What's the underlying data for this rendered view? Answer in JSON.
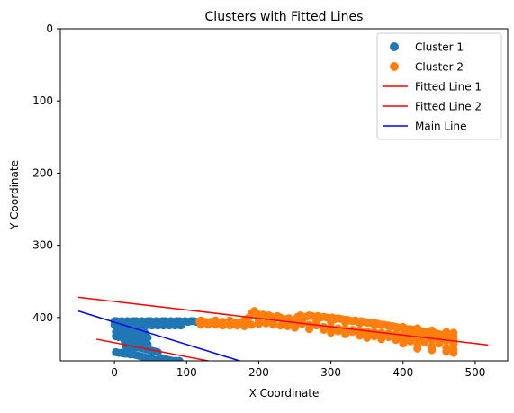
{
  "chart_data": {
    "type": "scatter",
    "title": "Clusters with Fitted Lines",
    "xlabel": "X Coordinate",
    "ylabel": "Y Coordinate",
    "xlim": [
      -75,
      545
    ],
    "ylim": [
      460,
      0
    ],
    "y_inverted": true,
    "grid": false,
    "legend_position": "top-right",
    "xticks": [
      0,
      100,
      200,
      300,
      400,
      500
    ],
    "yticks": [
      0,
      100,
      200,
      300,
      400
    ],
    "series": [
      {
        "name": "Cluster 1",
        "kind": "scatter",
        "color": "#1f77b4",
        "points": [
          [
            0,
            405
          ],
          [
            3,
            405
          ],
          [
            6,
            406
          ],
          [
            10,
            405
          ],
          [
            14,
            406
          ],
          [
            18,
            405
          ],
          [
            22,
            406
          ],
          [
            26,
            405
          ],
          [
            30,
            405
          ],
          [
            34,
            406
          ],
          [
            38,
            405
          ],
          [
            42,
            406
          ],
          [
            46,
            405
          ],
          [
            50,
            405
          ],
          [
            54,
            406
          ],
          [
            58,
            405
          ],
          [
            62,
            406
          ],
          [
            66,
            405
          ],
          [
            70,
            405
          ],
          [
            74,
            406
          ],
          [
            78,
            405
          ],
          [
            82,
            406
          ],
          [
            86,
            405
          ],
          [
            90,
            405
          ],
          [
            94,
            406
          ],
          [
            98,
            405
          ],
          [
            102,
            406
          ],
          [
            106,
            405
          ],
          [
            110,
            405
          ],
          [
            114,
            406
          ],
          [
            0,
            410
          ],
          [
            4,
            411
          ],
          [
            8,
            410
          ],
          [
            12,
            411
          ],
          [
            16,
            410
          ],
          [
            20,
            411
          ],
          [
            24,
            410
          ],
          [
            28,
            411
          ],
          [
            32,
            410
          ],
          [
            36,
            411
          ],
          [
            40,
            410
          ],
          [
            44,
            411
          ],
          [
            48,
            410
          ],
          [
            52,
            411
          ],
          [
            56,
            410
          ],
          [
            60,
            411
          ],
          [
            64,
            410
          ],
          [
            68,
            411
          ],
          [
            72,
            410
          ],
          [
            76,
            411
          ],
          [
            80,
            410
          ],
          [
            84,
            411
          ],
          [
            88,
            410
          ],
          [
            92,
            411
          ],
          [
            2,
            420
          ],
          [
            6,
            421
          ],
          [
            10,
            420
          ],
          [
            14,
            421
          ],
          [
            18,
            420
          ],
          [
            22,
            421
          ],
          [
            26,
            420
          ],
          [
            30,
            421
          ],
          [
            34,
            420
          ],
          [
            38,
            421
          ],
          [
            42,
            421
          ],
          [
            2,
            426
          ],
          [
            6,
            427
          ],
          [
            10,
            426
          ],
          [
            14,
            427
          ],
          [
            18,
            426
          ],
          [
            22,
            427
          ],
          [
            26,
            426
          ],
          [
            30,
            427
          ],
          [
            34,
            426
          ],
          [
            38,
            427
          ],
          [
            42,
            427
          ],
          [
            46,
            428
          ],
          [
            14,
            432
          ],
          [
            18,
            433
          ],
          [
            22,
            432
          ],
          [
            26,
            433
          ],
          [
            30,
            433
          ],
          [
            34,
            434
          ],
          [
            38,
            435
          ],
          [
            42,
            436
          ],
          [
            46,
            437
          ],
          [
            16,
            440
          ],
          [
            20,
            441
          ],
          [
            24,
            440
          ],
          [
            28,
            441
          ],
          [
            32,
            441
          ],
          [
            36,
            442
          ],
          [
            40,
            443
          ],
          [
            44,
            444
          ],
          [
            48,
            445
          ],
          [
            52,
            446
          ],
          [
            56,
            447
          ],
          [
            60,
            448
          ],
          [
            2,
            448
          ],
          [
            6,
            449
          ],
          [
            10,
            449
          ],
          [
            14,
            450
          ],
          [
            18,
            450
          ],
          [
            22,
            451
          ],
          [
            26,
            451
          ],
          [
            30,
            452
          ],
          [
            34,
            453
          ],
          [
            38,
            454
          ],
          [
            42,
            455
          ],
          [
            46,
            456
          ],
          [
            50,
            457
          ],
          [
            54,
            458
          ],
          [
            58,
            459
          ],
          [
            62,
            460
          ],
          [
            64,
            456
          ],
          [
            68,
            457
          ],
          [
            72,
            458
          ],
          [
            76,
            459
          ],
          [
            80,
            460
          ],
          [
            85,
            460
          ],
          [
            90,
            460
          ]
        ]
      },
      {
        "name": "Cluster 2",
        "kind": "scatter",
        "color": "#ff7f0e",
        "points": [
          [
            118,
            406
          ],
          [
            126,
            406
          ],
          [
            134,
            406
          ],
          [
            142,
            406
          ],
          [
            150,
            406
          ],
          [
            158,
            406
          ],
          [
            166,
            407
          ],
          [
            174,
            407
          ],
          [
            182,
            406
          ],
          [
            186,
            400
          ],
          [
            190,
            394
          ],
          [
            194,
            391
          ],
          [
            198,
            395
          ],
          [
            202,
            399
          ],
          [
            206,
            396
          ],
          [
            210,
            398
          ],
          [
            214,
            397
          ],
          [
            218,
            399
          ],
          [
            222,
            401
          ],
          [
            226,
            398
          ],
          [
            230,
            400
          ],
          [
            234,
            404
          ],
          [
            238,
            402
          ],
          [
            242,
            401
          ],
          [
            246,
            404
          ],
          [
            250,
            403
          ],
          [
            254,
            399
          ],
          [
            258,
            397
          ],
          [
            262,
            400
          ],
          [
            266,
            399
          ],
          [
            270,
            397
          ],
          [
            274,
            398
          ],
          [
            278,
            399
          ],
          [
            282,
            398
          ],
          [
            286,
            400
          ],
          [
            290,
            399
          ],
          [
            294,
            400
          ],
          [
            298,
            401
          ],
          [
            302,
            400
          ],
          [
            306,
            402
          ],
          [
            310,
            401
          ],
          [
            314,
            402
          ],
          [
            318,
            403
          ],
          [
            322,
            403
          ],
          [
            326,
            404
          ],
          [
            330,
            405
          ],
          [
            334,
            404
          ],
          [
            338,
            406
          ],
          [
            342,
            405
          ],
          [
            346,
            406
          ],
          [
            350,
            407
          ],
          [
            354,
            407
          ],
          [
            358,
            408
          ],
          [
            362,
            408
          ],
          [
            366,
            409
          ],
          [
            370,
            410
          ],
          [
            374,
            410
          ],
          [
            378,
            411
          ],
          [
            382,
            412
          ],
          [
            386,
            412
          ],
          [
            390,
            413
          ],
          [
            394,
            414
          ],
          [
            398,
            414
          ],
          [
            402,
            415
          ],
          [
            406,
            416
          ],
          [
            410,
            416
          ],
          [
            414,
            417
          ],
          [
            418,
            418
          ],
          [
            422,
            418
          ],
          [
            426,
            419
          ],
          [
            430,
            420
          ],
          [
            434,
            420
          ],
          [
            438,
            421
          ],
          [
            442,
            422
          ],
          [
            446,
            422
          ],
          [
            450,
            423
          ],
          [
            454,
            424
          ],
          [
            458,
            424
          ],
          [
            462,
            425
          ],
          [
            466,
            426
          ],
          [
            470,
            426
          ],
          [
            120,
            410
          ],
          [
            130,
            410
          ],
          [
            140,
            410
          ],
          [
            150,
            411
          ],
          [
            160,
            411
          ],
          [
            170,
            411
          ],
          [
            180,
            412
          ],
          [
            190,
            410
          ],
          [
            200,
            409
          ],
          [
            210,
            408
          ],
          [
            220,
            410
          ],
          [
            230,
            411
          ],
          [
            240,
            412
          ],
          [
            250,
            410
          ],
          [
            260,
            409
          ],
          [
            270,
            410
          ],
          [
            280,
            411
          ],
          [
            290,
            413
          ],
          [
            300,
            414
          ],
          [
            310,
            415
          ],
          [
            320,
            416
          ],
          [
            330,
            417
          ],
          [
            340,
            418
          ],
          [
            350,
            419
          ],
          [
            360,
            420
          ],
          [
            370,
            421
          ],
          [
            380,
            422
          ],
          [
            390,
            423
          ],
          [
            400,
            424
          ],
          [
            410,
            425
          ],
          [
            420,
            426
          ],
          [
            430,
            428
          ],
          [
            440,
            429
          ],
          [
            450,
            430
          ],
          [
            460,
            431
          ],
          [
            470,
            432
          ],
          [
            120,
            404
          ],
          [
            140,
            404
          ],
          [
            160,
            404
          ],
          [
            180,
            404
          ],
          [
            200,
            404
          ],
          [
            220,
            405
          ],
          [
            240,
            406
          ],
          [
            260,
            405
          ],
          [
            280,
            405
          ],
          [
            300,
            406
          ],
          [
            320,
            407
          ],
          [
            340,
            408
          ],
          [
            360,
            410
          ],
          [
            380,
            411
          ],
          [
            400,
            413
          ],
          [
            420,
            415
          ],
          [
            440,
            418
          ],
          [
            460,
            420
          ],
          [
            470,
            421
          ],
          [
            250,
            414
          ],
          [
            270,
            416
          ],
          [
            290,
            417
          ],
          [
            310,
            419
          ],
          [
            330,
            420
          ],
          [
            350,
            422
          ],
          [
            370,
            423
          ],
          [
            390,
            425
          ],
          [
            410,
            426
          ],
          [
            430,
            427
          ],
          [
            450,
            428
          ],
          [
            470,
            430
          ],
          [
            300,
            421
          ],
          [
            320,
            423
          ],
          [
            340,
            425
          ],
          [
            360,
            426
          ],
          [
            380,
            427
          ],
          [
            400,
            429
          ],
          [
            420,
            430
          ],
          [
            440,
            431
          ],
          [
            460,
            432
          ],
          [
            470,
            434
          ],
          [
            350,
            428
          ],
          [
            370,
            430
          ],
          [
            390,
            431
          ],
          [
            410,
            433
          ],
          [
            430,
            434
          ],
          [
            450,
            436
          ],
          [
            470,
            437
          ],
          [
            400,
            436
          ],
          [
            420,
            438
          ],
          [
            440,
            440
          ],
          [
            460,
            442
          ],
          [
            470,
            444
          ],
          [
            420,
            443
          ],
          [
            440,
            445
          ],
          [
            460,
            447
          ],
          [
            470,
            449
          ]
        ]
      },
      {
        "name": "Fitted Line 1",
        "kind": "line",
        "color": "#ff0000",
        "points": [
          [
            -50,
            372
          ],
          [
            518,
            438
          ]
        ]
      },
      {
        "name": "Fitted Line 2",
        "kind": "line",
        "color": "#ff0000",
        "points": [
          [
            -25,
            430
          ],
          [
            140,
            462
          ]
        ]
      },
      {
        "name": "Main Line",
        "kind": "line",
        "color": "#0000ff",
        "points": [
          [
            -50,
            391
          ],
          [
            180,
            462
          ]
        ]
      }
    ]
  }
}
